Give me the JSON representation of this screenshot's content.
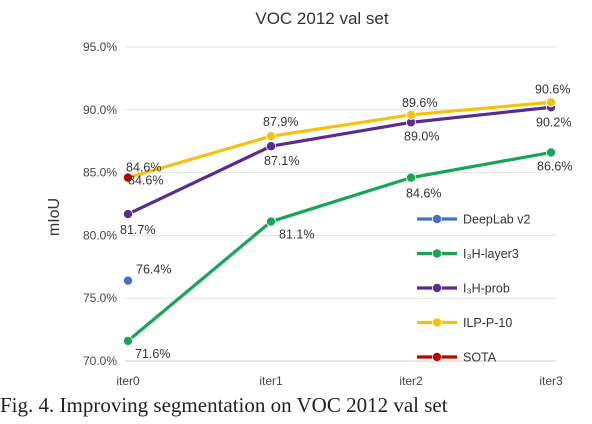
{
  "chart_data": {
    "type": "line",
    "title": "VOC 2012 val set",
    "ylabel": "mIoU",
    "xlabel": "",
    "categories": [
      "iter0",
      "iter1",
      "iter2",
      "iter3"
    ],
    "ylim": [
      70.0,
      95.0
    ],
    "yticks": [
      "70.0%",
      "75.0%",
      "80.0%",
      "85.0%",
      "90.0%",
      "95.0%"
    ],
    "ytick_values": [
      70,
      75,
      80,
      85,
      90,
      95
    ],
    "grid": "horizontal",
    "legend_position": "right",
    "series": [
      {
        "name": "DeepLab v2",
        "color": "#4472c4",
        "values": [
          76.4,
          null,
          null,
          null
        ],
        "labels": [
          "76.4%",
          "",
          "",
          ""
        ]
      },
      {
        "name": "I₃H-layer3",
        "color": "#17a556",
        "values": [
          71.6,
          81.1,
          84.6,
          86.6
        ],
        "labels": [
          "71.6%",
          "81.1%",
          "84.6%",
          "86.6%"
        ]
      },
      {
        "name": "I₃H-prob",
        "color": "#5b2c8f",
        "values": [
          81.7,
          87.1,
          89.0,
          90.2
        ],
        "labels": [
          "81.7%",
          "87.1%",
          "89.0%",
          "90.2%"
        ]
      },
      {
        "name": "ILP-P-10",
        "color": "#f5c10d",
        "values": [
          84.6,
          87.9,
          89.6,
          90.6
        ],
        "labels": [
          "84.6%",
          "87.9%",
          "89.6%",
          "90.6%"
        ]
      },
      {
        "name": "SOTA",
        "color": "#c00000",
        "values": [
          84.6,
          null,
          null,
          null
        ],
        "labels": [
          "84.6%",
          "",
          "",
          ""
        ]
      }
    ]
  },
  "caption": "Fig. 4. Improving segmentation on VOC 2012 val set"
}
